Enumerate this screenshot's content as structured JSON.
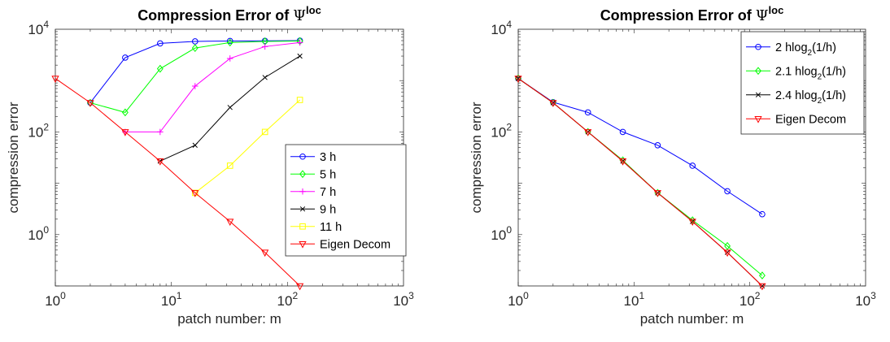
{
  "chart_data": [
    {
      "type": "line",
      "title": "Compression Error of",
      "title_symbol": "Ψ",
      "title_superscript": "loc",
      "xlabel": "patch number: m",
      "ylabel": "compression error",
      "xscale": "log",
      "yscale": "log",
      "xlim": [
        1,
        1000
      ],
      "ylim": [
        0.1,
        10000
      ],
      "x_ticks": [
        {
          "base": "10",
          "exp": "0"
        },
        {
          "base": "10",
          "exp": "1"
        },
        {
          "base": "10",
          "exp": "2"
        },
        {
          "base": "10",
          "exp": "3"
        }
      ],
      "y_ticks": [
        {
          "value": 1,
          "base": "10",
          "exp": "0"
        },
        {
          "value": 100,
          "base": "10",
          "exp": "2"
        },
        {
          "value": 10000,
          "base": "10",
          "exp": "4"
        }
      ],
      "grid": false,
      "legend_position": "bottom-right",
      "series": [
        {
          "name": "3 h",
          "color": "#0000ff",
          "marker": "circle",
          "x": [
            2,
            4,
            8,
            16,
            32,
            64,
            128
          ],
          "y": [
            370,
            2800,
            5300,
            5800,
            5900,
            5950,
            6000
          ]
        },
        {
          "name": "5 h",
          "color": "#00ff00",
          "marker": "diamond",
          "x": [
            2,
            4,
            8,
            16,
            32,
            64,
            128
          ],
          "y": [
            370,
            240,
            1700,
            4300,
            5500,
            5800,
            5900
          ]
        },
        {
          "name": "7 h",
          "color": "#ff00ff",
          "marker": "plus",
          "x": [
            4,
            8,
            16,
            32,
            64,
            128
          ],
          "y": [
            100,
            100,
            780,
            2700,
            4600,
            5500
          ]
        },
        {
          "name": "9 h",
          "color": "#000000",
          "marker": "cross",
          "x": [
            8,
            16,
            32,
            64,
            128
          ],
          "y": [
            27,
            55,
            300,
            1150,
            3000
          ]
        },
        {
          "name": "11 h",
          "color": "#ffff00",
          "marker": "square",
          "x": [
            16,
            32,
            64,
            128
          ],
          "y": [
            6.5,
            22,
            100,
            420
          ]
        },
        {
          "name": "Eigen Decom",
          "color": "#ff0000",
          "marker": "triangle-down",
          "x": [
            1,
            2,
            4,
            8,
            16,
            32,
            64,
            128
          ],
          "y": [
            1100,
            370,
            100,
            27,
            6.5,
            1.8,
            0.45,
            0.1
          ]
        }
      ]
    },
    {
      "type": "line",
      "title": "Compression Error of",
      "title_symbol": "Ψ",
      "title_superscript": "loc",
      "xlabel": "patch number: m",
      "ylabel": "compression error",
      "xscale": "log",
      "yscale": "log",
      "xlim": [
        1,
        1000
      ],
      "ylim": [
        0.1,
        10000
      ],
      "x_ticks": [
        {
          "base": "10",
          "exp": "0"
        },
        {
          "base": "10",
          "exp": "1"
        },
        {
          "base": "10",
          "exp": "2"
        },
        {
          "base": "10",
          "exp": "3"
        }
      ],
      "y_ticks": [
        {
          "value": 1,
          "base": "10",
          "exp": "0"
        },
        {
          "value": 100,
          "base": "10",
          "exp": "2"
        },
        {
          "value": 10000,
          "base": "10",
          "exp": "4"
        }
      ],
      "grid": false,
      "legend_position": "top-right",
      "series": [
        {
          "name": "2 hlog",
          "name_sub": "2",
          "name_tail": "(1/h)",
          "color": "#0000ff",
          "marker": "circle",
          "x": [
            1,
            2,
            4,
            8,
            16,
            32,
            64,
            128
          ],
          "y": [
            1100,
            380,
            240,
            100,
            55,
            22,
            7,
            2.5
          ]
        },
        {
          "name": "2.1 hlog",
          "name_sub": "2",
          "name_tail": "(1/h)",
          "color": "#00ff00",
          "marker": "diamond",
          "x": [
            1,
            2,
            4,
            8,
            16,
            32,
            64,
            128
          ],
          "y": [
            1100,
            370,
            100,
            28,
            6.5,
            1.9,
            0.6,
            0.16
          ]
        },
        {
          "name": "2.4 hlog",
          "name_sub": "2",
          "name_tail": "(1/h)",
          "color": "#000000",
          "marker": "cross",
          "x": [
            1,
            2,
            4,
            8,
            16,
            32,
            64,
            128
          ],
          "y": [
            1100,
            370,
            100,
            27,
            6.5,
            1.8,
            0.45,
            0.1
          ]
        },
        {
          "name": "Eigen Decom",
          "color": "#ff0000",
          "marker": "triangle-down",
          "x": [
            1,
            2,
            4,
            8,
            16,
            32,
            64,
            128
          ],
          "y": [
            1100,
            370,
            100,
            27,
            6.5,
            1.8,
            0.45,
            0.1
          ]
        }
      ]
    }
  ]
}
